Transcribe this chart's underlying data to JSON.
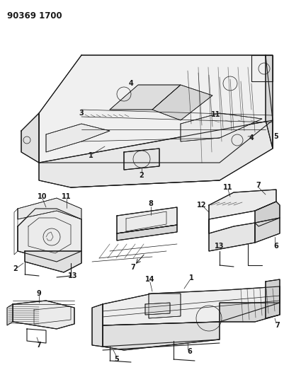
{
  "title": "90369 1700",
  "bg_color": "#ffffff",
  "line_color": "#1a1a1a",
  "title_fontsize": 8.5,
  "label_fontsize": 7,
  "fig_width": 4.01,
  "fig_height": 5.33,
  "dpi": 100
}
